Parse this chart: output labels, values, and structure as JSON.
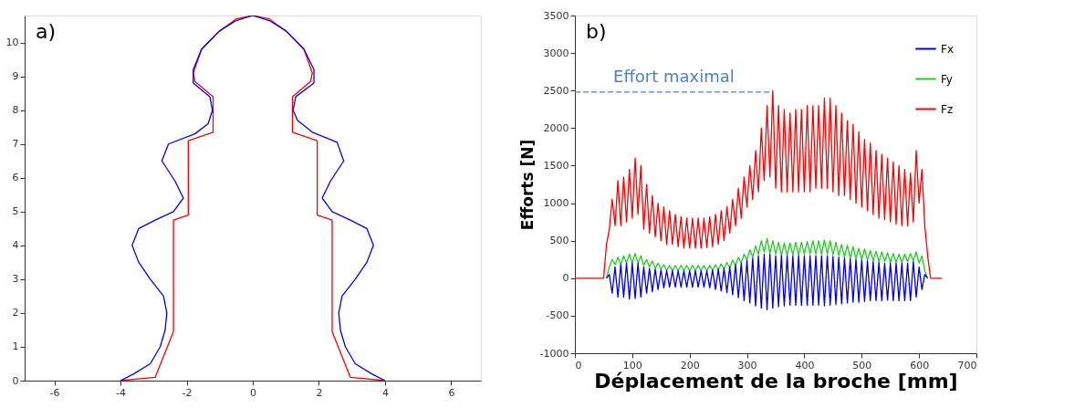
{
  "chart_data": [
    {
      "type": "line",
      "annotations": [
        "a)"
      ],
      "xlim": [
        -6.9,
        6.9
      ],
      "ylim": [
        0,
        10.8
      ],
      "xticks": [
        -6,
        -4,
        -2,
        0,
        2,
        4,
        6
      ],
      "yticks": [
        0,
        1,
        2,
        3,
        4,
        5,
        6,
        7,
        8,
        9,
        10
      ],
      "grid": false,
      "legend": false,
      "marker": "none",
      "line_style": "solid",
      "series": [
        {
          "color": "#0000ff",
          "x": [
            -4,
            -3.6,
            -3.1,
            -2.8,
            -2.65,
            -2.6,
            -2.7,
            -3.1,
            -3.45,
            -3.65,
            -3.45,
            -2.95,
            -2.4,
            -2.1,
            -2.35,
            -2.75,
            -2.55,
            -1.75,
            -1.35,
            -1.22,
            -1.3,
            -1.8,
            -1.8,
            -1.55,
            -1.0,
            -0.5,
            0,
            0.5,
            1.0,
            1.55,
            1.85,
            1.85,
            1.3,
            1.22,
            1.35,
            1.8,
            2.55,
            2.75,
            2.35,
            2.1,
            2.4,
            2.95,
            3.45,
            3.65,
            3.45,
            3.1,
            2.7,
            2.6,
            2.65,
            2.8,
            3.1,
            3.6,
            4
          ],
          "values": [
            0,
            0.2,
            0.5,
            1,
            1.5,
            2,
            2.5,
            3,
            3.5,
            4,
            4.5,
            4.75,
            5,
            5.4,
            5.9,
            6.5,
            7,
            7.3,
            7.6,
            8,
            8.4,
            8.8,
            9.2,
            9.8,
            10.35,
            10.65,
            10.8,
            10.65,
            10.35,
            9.8,
            9.2,
            8.8,
            8.4,
            8,
            7.7,
            7.35,
            7.05,
            6.5,
            5.9,
            5.4,
            5,
            4.75,
            4.5,
            4,
            3.5,
            3,
            2.5,
            2,
            1.5,
            1,
            0.5,
            0.2,
            0
          ]
        },
        {
          "color": "#ff0000",
          "x": [
            -4,
            -2.95,
            -2.4,
            -2.4,
            -1.95,
            -1.95,
            -1.2,
            -1.2,
            -1.75,
            -1.8,
            -1.55,
            -1.05,
            -0.5,
            0,
            0.5,
            1.05,
            1.55,
            1.8,
            1.75,
            1.2,
            1.2,
            1.95,
            1.95,
            2.4,
            2.4,
            2.95,
            4
          ],
          "values": [
            0,
            0.1,
            1.45,
            4.75,
            4.9,
            7.1,
            7.35,
            8.4,
            8.85,
            9.1,
            9.8,
            10.3,
            10.7,
            10.8,
            10.7,
            10.3,
            9.8,
            9.1,
            8.85,
            8.4,
            7.35,
            7.1,
            4.9,
            4.75,
            1.45,
            0.1,
            0
          ]
        }
      ]
    },
    {
      "type": "line",
      "annotations": [
        "b)"
      ],
      "xlabel": "Déplacement de la broche [mm]",
      "ylabel": "Efforts [N]",
      "xlim": [
        0,
        700
      ],
      "ylim": [
        -1000,
        3500
      ],
      "xticks": [
        0,
        100,
        200,
        300,
        400,
        500,
        600,
        700
      ],
      "yticks": [
        -1000,
        -500,
        0,
        500,
        1000,
        1500,
        2000,
        2500,
        3000,
        3500
      ],
      "grid": false,
      "legend": "top right",
      "marker": "none",
      "line_style": "solid",
      "ref_lines": [
        {
          "axis": "y",
          "value": 2480,
          "label": "Effort maximal",
          "color": "#4f81bd",
          "line_style": "dashed"
        }
      ],
      "series": [
        {
          "name": "Fx",
          "color": "#0000ee",
          "x": [
            55,
            60,
            65,
            70,
            75,
            80,
            85,
            90,
            95,
            100,
            105,
            110,
            115,
            120,
            125,
            130,
            135,
            140,
            145,
            150,
            155,
            160,
            165,
            170,
            175,
            180,
            185,
            190,
            195,
            200,
            205,
            210,
            215,
            220,
            225,
            230,
            235,
            240,
            245,
            250,
            255,
            260,
            265,
            270,
            275,
            280,
            285,
            290,
            295,
            300,
            305,
            310,
            315,
            320,
            325,
            330,
            335,
            340,
            345,
            350,
            355,
            360,
            365,
            370,
            375,
            380,
            385,
            390,
            395,
            400,
            405,
            410,
            415,
            420,
            425,
            430,
            435,
            440,
            445,
            450,
            455,
            460,
            465,
            470,
            475,
            480,
            485,
            490,
            495,
            500,
            505,
            510,
            515,
            520,
            525,
            530,
            535,
            540,
            545,
            550,
            555,
            560,
            565,
            570,
            575,
            580,
            585,
            590,
            595,
            600,
            605,
            610,
            615
          ],
          "values": [
            0,
            50,
            -200,
            150,
            -250,
            180,
            -250,
            200,
            -280,
            200,
            -270,
            200,
            -250,
            150,
            -200,
            130,
            -180,
            120,
            -150,
            110,
            -130,
            100,
            -120,
            100,
            -120,
            100,
            -120,
            100,
            -120,
            100,
            -120,
            100,
            -120,
            100,
            -120,
            100,
            -130,
            110,
            -150,
            120,
            -170,
            130,
            -190,
            150,
            -220,
            180,
            -260,
            200,
            -300,
            240,
            -330,
            270,
            -370,
            300,
            -400,
            320,
            -420,
            320,
            -400,
            300,
            -380,
            300,
            -370,
            300,
            -360,
            300,
            -360,
            300,
            -360,
            300,
            -360,
            300,
            -360,
            300,
            -360,
            300,
            -370,
            300,
            -360,
            290,
            -350,
            280,
            -340,
            270,
            -330,
            260,
            -320,
            250,
            -320,
            240,
            -310,
            230,
            -300,
            220,
            -300,
            210,
            -300,
            200,
            -290,
            200,
            -300,
            200,
            -300,
            200,
            -300,
            200,
            -300,
            220,
            -250,
            150,
            -150,
            50,
            0
          ]
        },
        {
          "name": "Fy",
          "color": "#22cc22",
          "x": [
            55,
            60,
            65,
            70,
            75,
            80,
            85,
            90,
            95,
            100,
            105,
            110,
            115,
            120,
            125,
            130,
            135,
            140,
            145,
            150,
            155,
            160,
            165,
            170,
            175,
            180,
            185,
            190,
            195,
            200,
            205,
            210,
            215,
            220,
            225,
            230,
            235,
            240,
            245,
            250,
            255,
            260,
            265,
            270,
            275,
            280,
            285,
            290,
            295,
            300,
            305,
            310,
            315,
            320,
            325,
            330,
            335,
            340,
            345,
            350,
            355,
            360,
            365,
            370,
            375,
            380,
            385,
            390,
            395,
            400,
            405,
            410,
            415,
            420,
            425,
            430,
            435,
            440,
            445,
            450,
            455,
            460,
            465,
            470,
            475,
            480,
            485,
            490,
            495,
            500,
            505,
            510,
            515,
            520,
            525,
            530,
            535,
            540,
            545,
            550,
            555,
            560,
            565,
            570,
            575,
            580,
            585,
            590,
            595,
            600,
            605,
            610,
            615
          ],
          "values": [
            0,
            150,
            250,
            180,
            280,
            180,
            300,
            200,
            320,
            200,
            330,
            200,
            300,
            170,
            250,
            150,
            230,
            130,
            200,
            120,
            180,
            100,
            170,
            100,
            170,
            100,
            170,
            100,
            170,
            100,
            170,
            100,
            170,
            100,
            170,
            100,
            170,
            110,
            180,
            110,
            190,
            120,
            210,
            140,
            240,
            170,
            280,
            200,
            320,
            240,
            380,
            280,
            430,
            320,
            500,
            350,
            530,
            330,
            500,
            320,
            480,
            300,
            470,
            300,
            470,
            310,
            480,
            310,
            480,
            320,
            490,
            320,
            500,
            320,
            500,
            320,
            510,
            320,
            500,
            310,
            480,
            300,
            450,
            280,
            440,
            270,
            420,
            260,
            400,
            250,
            390,
            240,
            370,
            230,
            360,
            220,
            350,
            220,
            340,
            210,
            330,
            210,
            320,
            210,
            320,
            220,
            330,
            230,
            350,
            200,
            300,
            100,
            0
          ]
        },
        {
          "name": "Fz",
          "color": "#ff0000",
          "x": [
            0,
            50,
            55,
            60,
            65,
            70,
            75,
            80,
            85,
            90,
            95,
            100,
            105,
            110,
            115,
            120,
            125,
            130,
            135,
            140,
            145,
            150,
            155,
            160,
            165,
            170,
            175,
            180,
            185,
            190,
            195,
            200,
            205,
            210,
            215,
            220,
            225,
            230,
            235,
            240,
            245,
            250,
            255,
            260,
            265,
            270,
            275,
            280,
            285,
            290,
            295,
            300,
            305,
            310,
            315,
            320,
            325,
            330,
            335,
            340,
            345,
            350,
            355,
            360,
            365,
            370,
            375,
            380,
            385,
            390,
            395,
            400,
            405,
            410,
            415,
            420,
            425,
            430,
            435,
            440,
            445,
            450,
            455,
            460,
            465,
            470,
            475,
            480,
            485,
            490,
            495,
            500,
            505,
            510,
            515,
            520,
            525,
            530,
            535,
            540,
            545,
            550,
            555,
            560,
            565,
            570,
            575,
            580,
            585,
            590,
            595,
            600,
            605,
            610,
            615,
            620,
            640
          ],
          "values": [
            0,
            0,
            450,
            650,
            1050,
            700,
            1300,
            700,
            1350,
            750,
            1450,
            800,
            1600,
            850,
            1500,
            650,
            1250,
            600,
            1100,
            550,
            1000,
            500,
            950,
            450,
            900,
            450,
            850,
            420,
            820,
            400,
            800,
            400,
            800,
            400,
            800,
            400,
            800,
            410,
            820,
            420,
            850,
            450,
            900,
            500,
            950,
            600,
            1050,
            700,
            1200,
            800,
            1350,
            950,
            1500,
            1050,
            1700,
            1150,
            2000,
            1300,
            2300,
            1350,
            2500,
            1200,
            2300,
            1150,
            2250,
            1150,
            2200,
            1150,
            2250,
            1150,
            2250,
            1150,
            2300,
            1150,
            2300,
            1200,
            2300,
            1200,
            2400,
            1200,
            2400,
            1150,
            2300,
            1100,
            2200,
            1100,
            2100,
            1050,
            2050,
            1000,
            1950,
            950,
            1850,
            900,
            1800,
            850,
            1700,
            800,
            1650,
            780,
            1600,
            750,
            1550,
            720,
            1500,
            700,
            1450,
            700,
            1400,
            750,
            1700,
            1000,
            1450,
            700,
            300,
            0,
            0
          ]
        }
      ]
    }
  ]
}
